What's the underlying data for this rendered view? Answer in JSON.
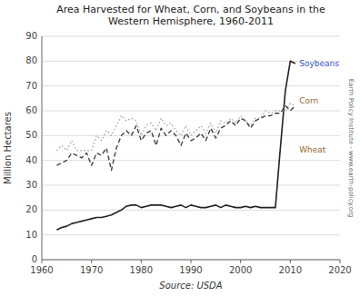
{
  "chart_data": {
    "type": "line",
    "title": "Area Harvested for Wheat, Corn, and Soybeans in the\nWestern Hemisphere, 1960-2011",
    "xlabel": "Source: USDA",
    "ylabel": "Million Hectares",
    "y2label": "Earth Policy Institute - www.earth-policy.org",
    "xlim": [
      1960,
      2020
    ],
    "ylim": [
      0,
      90
    ],
    "xticks": [
      1960,
      1970,
      1980,
      1990,
      2000,
      2010,
      2020
    ],
    "yticks": [
      0,
      10,
      20,
      30,
      40,
      50,
      60,
      70,
      80,
      90
    ],
    "grid": "y",
    "x": [
      1963,
      1964,
      1965,
      1966,
      1967,
      1968,
      1969,
      1970,
      1971,
      1972,
      1973,
      1974,
      1975,
      1976,
      1977,
      1978,
      1979,
      1980,
      1981,
      1982,
      1983,
      1984,
      1985,
      1986,
      1987,
      1988,
      1989,
      1990,
      1991,
      1992,
      1993,
      1994,
      1995,
      1996,
      1997,
      1998,
      1999,
      2000,
      2001,
      2002,
      2003,
      2004,
      2005,
      2006,
      2007,
      2008,
      2009,
      2010,
      2011
    ],
    "series": [
      {
        "color": "#222222",
        "line_style": "solid",
        "values": [
          12,
          13,
          13.5,
          14.5,
          15,
          15.5,
          16,
          16.5,
          17,
          17,
          17.5,
          18,
          19,
          20,
          21.5,
          22,
          22,
          21,
          21.5,
          22,
          22,
          22,
          21.5,
          21,
          21.5,
          22,
          21,
          22,
          21.5,
          21,
          21,
          21.5,
          22,
          21,
          22,
          21.5,
          21,
          21,
          21.5,
          21,
          21.5,
          21,
          21,
          21,
          21,
          45,
          68,
          80,
          79
        ]
      },
      {
        "color": "#aaaaaa",
        "line_style": "dotted",
        "values": [
          44,
          46,
          44,
          48,
          44,
          44,
          44,
          44,
          50,
          48,
          52,
          50,
          54,
          58,
          56,
          57,
          56,
          50,
          54,
          55,
          52,
          57,
          54,
          55,
          52,
          50,
          54,
          50,
          52,
          54,
          51,
          55,
          51,
          56,
          55,
          57,
          55,
          58,
          56,
          54,
          57,
          57,
          60,
          59,
          60,
          60,
          60,
          63,
          62
        ]
      },
      {
        "color": "#444444",
        "line_style": "dashed",
        "values": [
          38,
          39,
          40,
          43,
          42,
          41,
          43,
          38,
          43,
          42,
          45,
          36,
          45,
          50,
          52,
          50,
          54,
          48,
          51,
          52,
          46,
          53,
          50,
          52,
          50,
          46,
          51,
          48,
          49,
          51,
          48,
          53,
          49,
          53,
          54,
          56,
          54,
          57,
          56,
          53,
          56,
          57,
          58,
          58,
          59,
          59,
          62,
          60,
          62
        ]
      }
    ],
    "annotations": [
      {
        "text": "Soybeans",
        "x": 2011.8,
        "y": 79,
        "color": "#3355cc"
      },
      {
        "text": "Corn",
        "x": 2011.8,
        "y": 64,
        "color": "#996633"
      },
      {
        "text": "Wheat",
        "x": 2011.8,
        "y": 44,
        "color": "#996633"
      }
    ]
  }
}
